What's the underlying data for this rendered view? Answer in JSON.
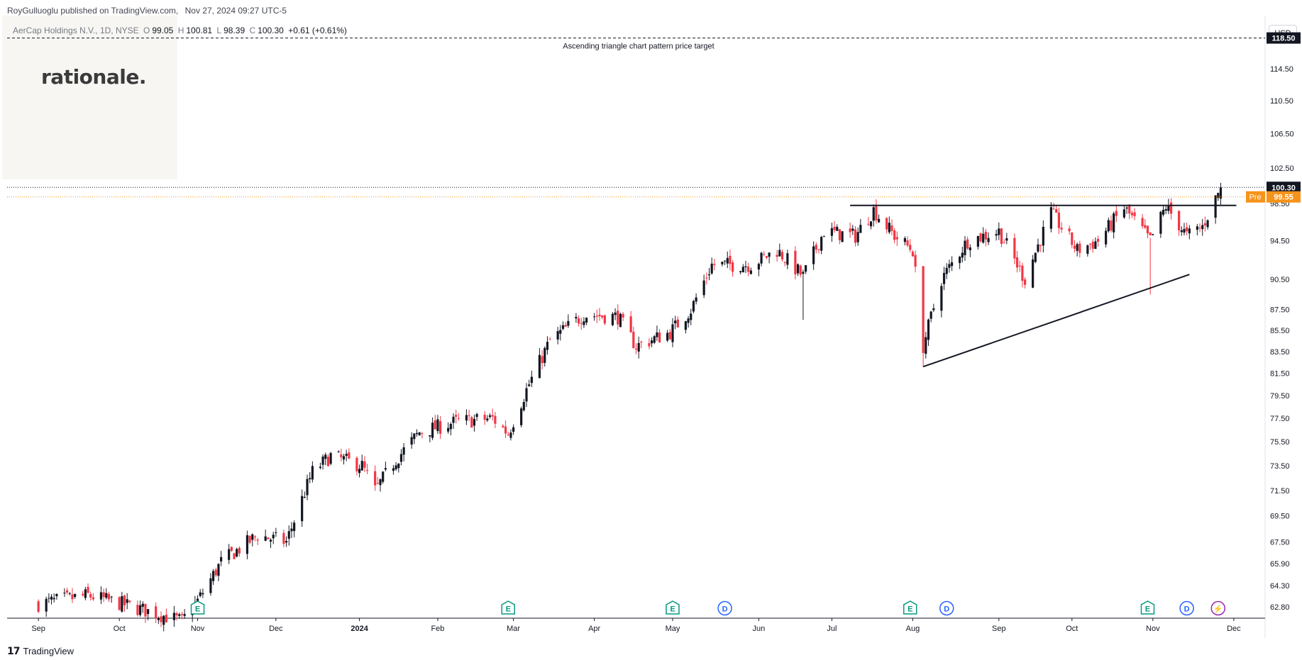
{
  "header": {
    "author": "RoyGulluoglu published on TradingView.com,",
    "date": "Nov 27, 2024 09:27 UTC-5"
  },
  "legend": {
    "symbol": "AerCap Holdings N.V., 1D, NYSE",
    "o_label": "O",
    "o_value": "99.05",
    "h_label": "H",
    "h_value": "100.81",
    "l_label": "L",
    "l_value": "98.39",
    "c_label": "C",
    "c_value": "100.30",
    "change": "+0.61 (+0.61%)"
  },
  "logo": {
    "text": "rationale."
  },
  "currency": "USD",
  "footer": {
    "brand": "TradingView",
    "icon": "tradingview-logo-icon"
  },
  "colors": {
    "up": "#131722",
    "down": "#f23645",
    "target_line": "#131722",
    "current_price_bg": "#131722",
    "premarket_bg": "#f7931a",
    "earnings": "#089981",
    "dividend": "#2962ff",
    "split": "#9c27b0"
  },
  "chart_data": {
    "type": "candlestick",
    "title": "",
    "xlabel": "",
    "ylabel": "",
    "ylim": [
      62.0,
      121.5
    ],
    "yscale": "log",
    "grid": false,
    "y_ticks": [
      "118.50",
      "114.50",
      "110.50",
      "106.50",
      "102.50",
      "98.50",
      "94.50",
      "90.50",
      "87.50",
      "85.50",
      "83.50",
      "81.50",
      "79.50",
      "77.50",
      "75.50",
      "73.50",
      "71.50",
      "69.50",
      "67.50",
      "65.90",
      "64.30",
      "62.80"
    ],
    "x_ticks": [
      "Sep",
      "Oct",
      "Nov",
      "Dec",
      "2024",
      "Feb",
      "Mar",
      "Apr",
      "May",
      "Jun",
      "Jul",
      "Aug",
      "Sep",
      "Oct",
      "Nov",
      "Dec"
    ],
    "price_target": {
      "value": 118.5,
      "label": "Ascending triangle chart pattern price target"
    },
    "current_price": {
      "value": 100.3,
      "label": "100.30"
    },
    "premarket_price": {
      "tag": "Pre",
      "value": 99.55,
      "label": "99.55"
    },
    "resistance": {
      "value": 98.3,
      "from": "2024-07-08",
      "to": "2024-11-27"
    },
    "support": {
      "from": {
        "date": "2024-08-05",
        "value": 82.1
      },
      "to": {
        "date": "2024-11-15",
        "value": 91.0
      }
    },
    "anchors": [
      {
        "date": "2023-09-01",
        "close": 63.0
      },
      {
        "date": "2023-09-20",
        "close": 63.6
      },
      {
        "date": "2023-10-05",
        "close": 62.9
      },
      {
        "date": "2023-10-26",
        "close": 61.8
      },
      {
        "date": "2023-11-01",
        "close": 63.2
      },
      {
        "date": "2023-11-10",
        "close": 66.0
      },
      {
        "date": "2023-11-24",
        "close": 68.0
      },
      {
        "date": "2023-12-05",
        "close": 67.5
      },
      {
        "date": "2023-12-15",
        "close": 73.0
      },
      {
        "date": "2023-12-22",
        "close": 74.3
      },
      {
        "date": "2024-01-03",
        "close": 73.5
      },
      {
        "date": "2024-01-08",
        "close": 71.5
      },
      {
        "date": "2024-01-16",
        "close": 74.0
      },
      {
        "date": "2024-01-25",
        "close": 76.3
      },
      {
        "date": "2024-02-08",
        "close": 77.2
      },
      {
        "date": "2024-02-22",
        "close": 77.5
      },
      {
        "date": "2024-02-28",
        "close": 76.2
      },
      {
        "date": "2024-03-06",
        "close": 80.0
      },
      {
        "date": "2024-03-15",
        "close": 84.5
      },
      {
        "date": "2024-03-28",
        "close": 87.0
      },
      {
        "date": "2024-04-10",
        "close": 86.8
      },
      {
        "date": "2024-04-17",
        "close": 84.0
      },
      {
        "date": "2024-04-30",
        "close": 85.3
      },
      {
        "date": "2024-05-08",
        "close": 87.5
      },
      {
        "date": "2024-05-16",
        "close": 92.0
      },
      {
        "date": "2024-05-31",
        "close": 92.0
      },
      {
        "date": "2024-06-10",
        "close": 93.5
      },
      {
        "date": "2024-06-20",
        "close": 90.8
      },
      {
        "date": "2024-06-28",
        "close": 95.5
      },
      {
        "date": "2024-07-10",
        "close": 95.0
      },
      {
        "date": "2024-07-17",
        "close": 97.8
      },
      {
        "date": "2024-07-25",
        "close": 95.0
      },
      {
        "date": "2024-08-01",
        "close": 93.5
      },
      {
        "date": "2024-08-05",
        "close": 84.0
      },
      {
        "date": "2024-08-12",
        "close": 90.5
      },
      {
        "date": "2024-08-22",
        "close": 94.5
      },
      {
        "date": "2024-09-03",
        "close": 95.5
      },
      {
        "date": "2024-09-13",
        "close": 90.5
      },
      {
        "date": "2024-09-23",
        "close": 97.5
      },
      {
        "date": "2024-10-03",
        "close": 93.5
      },
      {
        "date": "2024-10-11",
        "close": 94.5
      },
      {
        "date": "2024-10-21",
        "close": 98.0
      },
      {
        "date": "2024-10-31",
        "close": 94.5
      },
      {
        "date": "2024-11-06",
        "close": 98.2
      },
      {
        "date": "2024-11-14",
        "close": 95.0
      },
      {
        "date": "2024-11-20",
        "close": 96.0
      },
      {
        "date": "2024-11-27",
        "close": 100.3
      }
    ],
    "events": [
      {
        "type": "E",
        "date": "2023-11-01"
      },
      {
        "type": "E",
        "date": "2024-02-28"
      },
      {
        "type": "E",
        "date": "2024-05-01"
      },
      {
        "type": "D",
        "date": "2024-05-21"
      },
      {
        "type": "E",
        "date": "2024-07-31"
      },
      {
        "type": "D",
        "date": "2024-08-14"
      },
      {
        "type": "E",
        "date": "2024-10-30"
      },
      {
        "type": "D",
        "date": "2024-11-14"
      },
      {
        "type": "S",
        "date": "2024-11-26"
      }
    ]
  }
}
